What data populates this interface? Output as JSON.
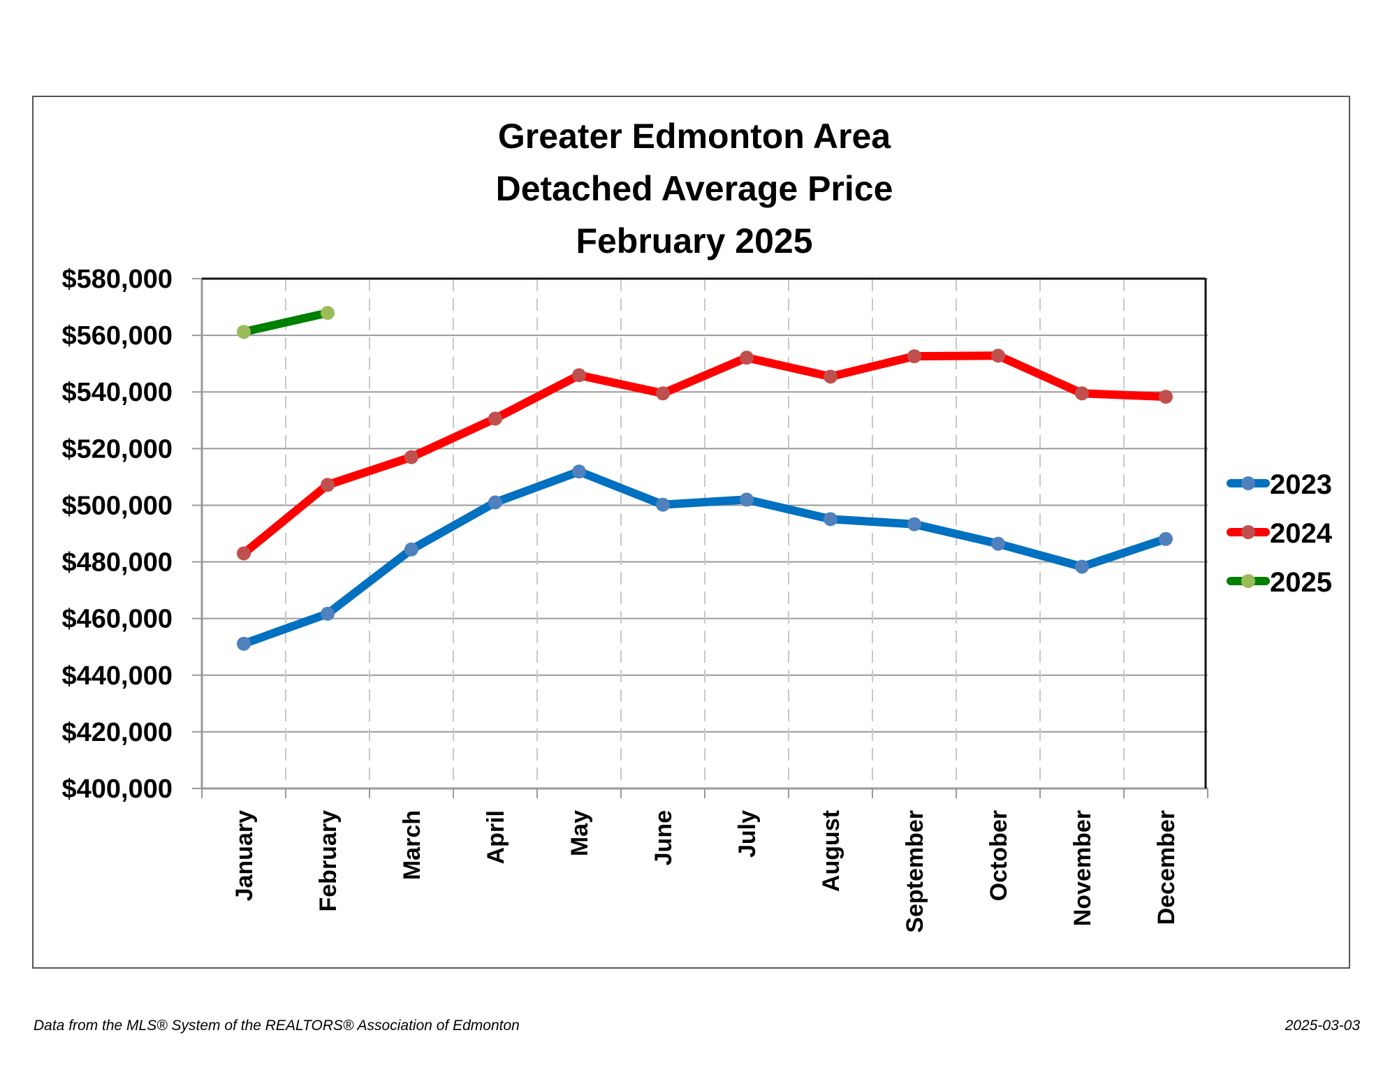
{
  "chart_data": {
    "type": "line",
    "title": [
      "Greater Edmonton Area",
      "Detached Average Price",
      "February 2025"
    ],
    "xlabel": "",
    "ylabel": "",
    "categories": [
      "January",
      "February",
      "March",
      "April",
      "May",
      "June",
      "July",
      "August",
      "September",
      "October",
      "November",
      "December"
    ],
    "ylim": [
      400000,
      580000
    ],
    "yticks": [
      400000,
      420000,
      440000,
      460000,
      480000,
      500000,
      520000,
      540000,
      560000,
      580000
    ],
    "ytick_labels": [
      "$400,000",
      "$420,000",
      "$440,000",
      "$460,000",
      "$480,000",
      "$500,000",
      "$520,000",
      "$540,000",
      "$560,000",
      "$580,000"
    ],
    "grid": {
      "horizontal": "solid",
      "vertical": "dashed"
    },
    "legend_position": "right",
    "series": [
      {
        "name": "2023",
        "line_color": "#0070C0",
        "marker_color": "#4F81BD",
        "values": [
          451100,
          461700,
          484400,
          501000,
          511900,
          500200,
          502000,
          495100,
          493300,
          486400,
          478300,
          488100
        ]
      },
      {
        "name": "2024",
        "line_color": "#FF0000",
        "marker_color": "#C0504D",
        "values": [
          483000,
          507200,
          517000,
          530600,
          545900,
          539500,
          552100,
          545400,
          552600,
          552800,
          539500,
          538300
        ]
      },
      {
        "name": "2025",
        "line_color": "#008000",
        "marker_color": "#9BBB59",
        "values": [
          561200,
          567900
        ]
      }
    ]
  },
  "footer": {
    "source": "Data from the MLS® System of the REALTORS® Association of Edmonton",
    "date": "2025-03-03"
  }
}
